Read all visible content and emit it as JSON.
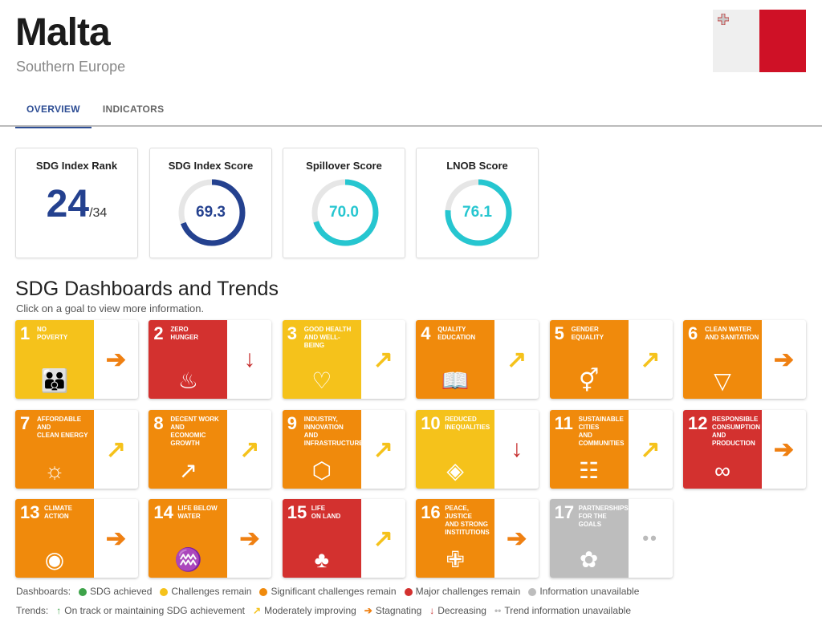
{
  "header": {
    "title": "Malta",
    "subtitle": "Southern Europe",
    "flag": "malta-flag"
  },
  "tabs": [
    {
      "label": "OVERVIEW",
      "active": true
    },
    {
      "label": "INDICATORS",
      "active": false
    }
  ],
  "cards": {
    "rank": {
      "label": "SDG Index Rank",
      "value": "24",
      "total": "/34"
    },
    "scores": [
      {
        "label": "SDG Index Score",
        "value": "69.3",
        "percent": 69.3,
        "color": "#24418f"
      },
      {
        "label": "Spillover Score",
        "value": "70.0",
        "percent": 70.0,
        "color": "#26c6d0"
      },
      {
        "label": "LNOB Score",
        "value": "76.1",
        "percent": 76.1,
        "color": "#26c6d0"
      }
    ]
  },
  "dashboards": {
    "title": "SDG Dashboards and Trends",
    "hint": "Click on a goal to view more information."
  },
  "colors": {
    "achieved": "#3ea34a",
    "challenges": "#f5c21b",
    "significant": "#f08a0c",
    "major": "#d3312f",
    "unavailable": "#bdbdbd",
    "improving": "#f5c21b",
    "stagnating": "#ef8012",
    "decreasing": "#c62e2e",
    "ontrack": "#3ea34a"
  },
  "goals": [
    {
      "n": "1",
      "name": "No\nPoverty",
      "status": "challenges",
      "trend": "stagnating",
      "icon": "family-icon"
    },
    {
      "n": "2",
      "name": "Zero\nHunger",
      "status": "major",
      "trend": "decreasing",
      "icon": "bowl-icon"
    },
    {
      "n": "3",
      "name": "Good Health\nand Well-Being",
      "status": "challenges",
      "trend": "improving",
      "icon": "heartbeat-icon"
    },
    {
      "n": "4",
      "name": "Quality\nEducation",
      "status": "significant",
      "trend": "improving",
      "icon": "book-icon"
    },
    {
      "n": "5",
      "name": "Gender\nEquality",
      "status": "significant",
      "trend": "improving",
      "icon": "gender-icon"
    },
    {
      "n": "6",
      "name": "Clean Water\nand Sanitation",
      "status": "significant",
      "trend": "stagnating",
      "icon": "water-icon"
    },
    {
      "n": "7",
      "name": "Affordable and\nClean Energy",
      "status": "significant",
      "trend": "improving",
      "icon": "sun-power-icon"
    },
    {
      "n": "8",
      "name": "Decent Work and\nEconomic Growth",
      "status": "significant",
      "trend": "improving",
      "icon": "growth-chart-icon"
    },
    {
      "n": "9",
      "name": "Industry, Innovation\nand Infrastructure",
      "status": "significant",
      "trend": "improving",
      "icon": "cubes-icon"
    },
    {
      "n": "10",
      "name": "Reduced\nInequalities",
      "status": "challenges",
      "trend": "decreasing",
      "icon": "equality-icon"
    },
    {
      "n": "11",
      "name": "Sustainable Cities\nand Communities",
      "status": "significant",
      "trend": "improving",
      "icon": "city-icon"
    },
    {
      "n": "12",
      "name": "Responsible\nConsumption\nand Production",
      "status": "major",
      "trend": "stagnating",
      "icon": "infinity-icon"
    },
    {
      "n": "13",
      "name": "Climate\nAction",
      "status": "significant",
      "trend": "stagnating",
      "icon": "eye-globe-icon"
    },
    {
      "n": "14",
      "name": "Life Below\nWater",
      "status": "significant",
      "trend": "stagnating",
      "icon": "fish-icon"
    },
    {
      "n": "15",
      "name": "Life\non Land",
      "status": "major",
      "trend": "improving",
      "icon": "tree-icon"
    },
    {
      "n": "16",
      "name": "Peace, Justice\nand Strong\nInstitutions",
      "status": "significant",
      "trend": "stagnating",
      "icon": "dove-icon"
    },
    {
      "n": "17",
      "name": "Partnerships\nfor the Goals",
      "status": "unavailable",
      "trend": "unavailable",
      "icon": "rings-icon"
    }
  ],
  "legend": {
    "dash_label": "Dashboards:",
    "dash": [
      {
        "key": "achieved",
        "text": "SDG achieved"
      },
      {
        "key": "challenges",
        "text": "Challenges remain"
      },
      {
        "key": "significant",
        "text": "Significant challenges remain"
      },
      {
        "key": "major",
        "text": "Major challenges remain"
      },
      {
        "key": "unavailable",
        "text": "Information unavailable"
      }
    ],
    "trend_label": "Trends:",
    "trends": [
      {
        "key": "ontrack",
        "text": "On track or maintaining SDG achievement"
      },
      {
        "key": "improving",
        "text": "Moderately improving"
      },
      {
        "key": "stagnating",
        "text": "Stagnating"
      },
      {
        "key": "decreasing",
        "text": "Decreasing"
      },
      {
        "key": "unavailable",
        "text": "Trend information unavailable"
      }
    ]
  }
}
